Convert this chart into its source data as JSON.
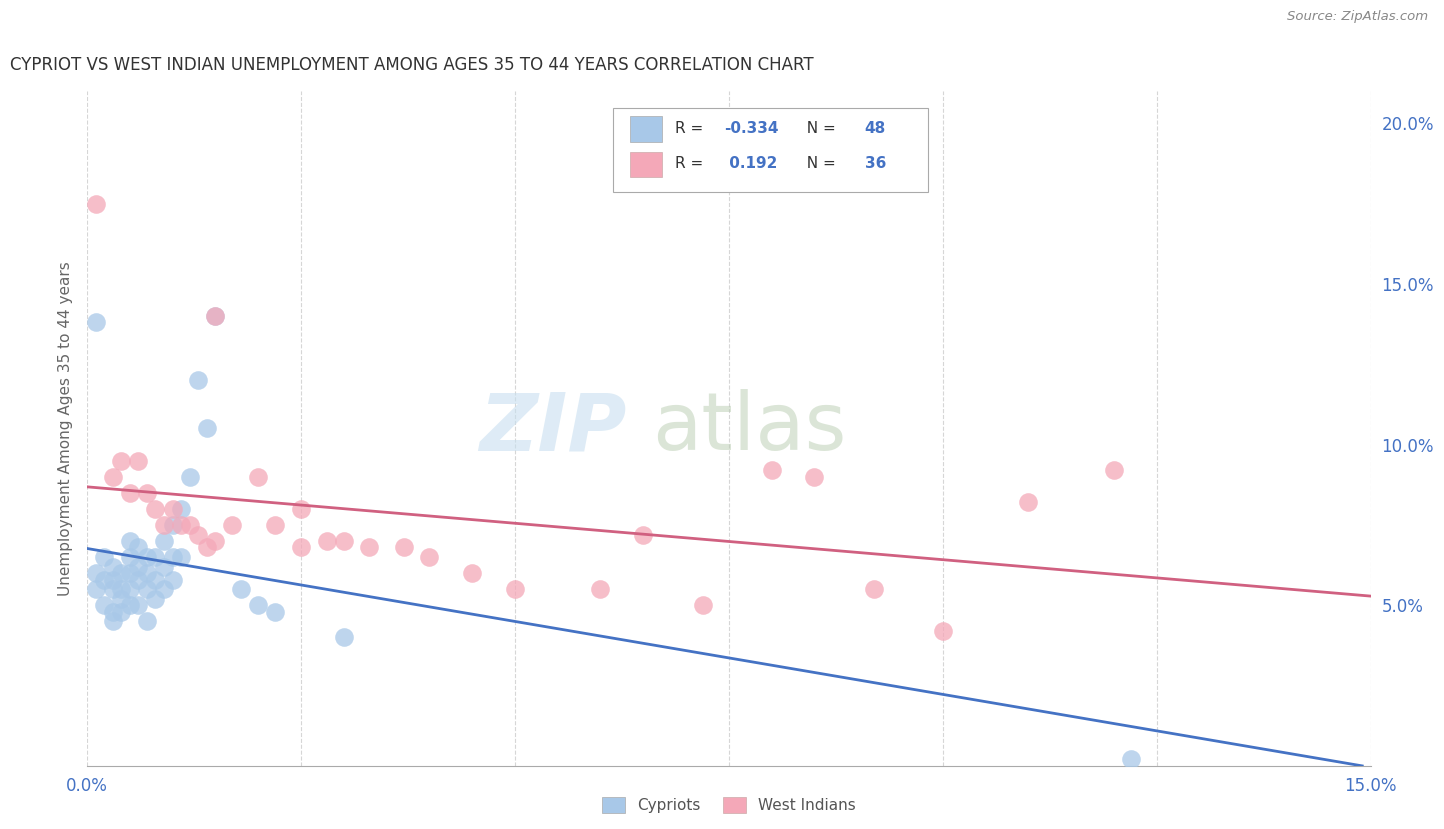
{
  "title": "CYPRIOT VS WEST INDIAN UNEMPLOYMENT AMONG AGES 35 TO 44 YEARS CORRELATION CHART",
  "source": "Source: ZipAtlas.com",
  "ylabel": "Unemployment Among Ages 35 to 44 years",
  "xlim": [
    0.0,
    0.15
  ],
  "ylim": [
    0.0,
    0.21
  ],
  "cypriot_color": "#a8c8e8",
  "west_indian_color": "#f4a8b8",
  "trend_cypriot_color": "#4472c4",
  "trend_west_indian_color": "#d06080",
  "background_color": "#ffffff",
  "cypriot_x": [
    0.001,
    0.001,
    0.002,
    0.002,
    0.002,
    0.003,
    0.003,
    0.003,
    0.003,
    0.003,
    0.004,
    0.004,
    0.004,
    0.004,
    0.005,
    0.005,
    0.005,
    0.005,
    0.005,
    0.006,
    0.006,
    0.006,
    0.006,
    0.007,
    0.007,
    0.007,
    0.007,
    0.008,
    0.008,
    0.008,
    0.009,
    0.009,
    0.009,
    0.01,
    0.01,
    0.01,
    0.011,
    0.011,
    0.012,
    0.013,
    0.014,
    0.015,
    0.018,
    0.02,
    0.022,
    0.001,
    0.122,
    0.03
  ],
  "cypriot_y": [
    0.06,
    0.055,
    0.065,
    0.058,
    0.05,
    0.062,
    0.058,
    0.055,
    0.048,
    0.045,
    0.06,
    0.055,
    0.052,
    0.048,
    0.07,
    0.065,
    0.06,
    0.055,
    0.05,
    0.068,
    0.062,
    0.058,
    0.05,
    0.065,
    0.06,
    0.055,
    0.045,
    0.065,
    0.058,
    0.052,
    0.07,
    0.062,
    0.055,
    0.075,
    0.065,
    0.058,
    0.08,
    0.065,
    0.09,
    0.12,
    0.105,
    0.14,
    0.055,
    0.05,
    0.048,
    0.138,
    0.002,
    0.04
  ],
  "west_indian_x": [
    0.001,
    0.003,
    0.004,
    0.005,
    0.006,
    0.007,
    0.008,
    0.009,
    0.01,
    0.011,
    0.012,
    0.013,
    0.014,
    0.015,
    0.017,
    0.02,
    0.022,
    0.025,
    0.028,
    0.03,
    0.033,
    0.037,
    0.04,
    0.045,
    0.05,
    0.06,
    0.065,
    0.072,
    0.08,
    0.085,
    0.092,
    0.1,
    0.11,
    0.12,
    0.015,
    0.025
  ],
  "west_indian_y": [
    0.175,
    0.09,
    0.095,
    0.085,
    0.095,
    0.085,
    0.08,
    0.075,
    0.08,
    0.075,
    0.075,
    0.072,
    0.068,
    0.07,
    0.075,
    0.09,
    0.075,
    0.08,
    0.07,
    0.07,
    0.068,
    0.068,
    0.065,
    0.06,
    0.055,
    0.055,
    0.072,
    0.05,
    0.092,
    0.09,
    0.055,
    0.042,
    0.082,
    0.092,
    0.14,
    0.068
  ]
}
